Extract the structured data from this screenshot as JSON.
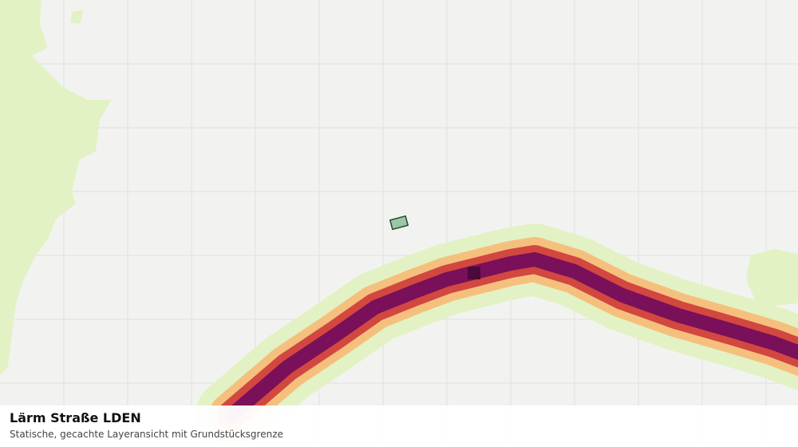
{
  "legend_panel": {
    "title": "Lärm Straße LDEN",
    "subtitle": "Statische, gecachte Layeransicht mit Grundstücksgrenze"
  }
}
